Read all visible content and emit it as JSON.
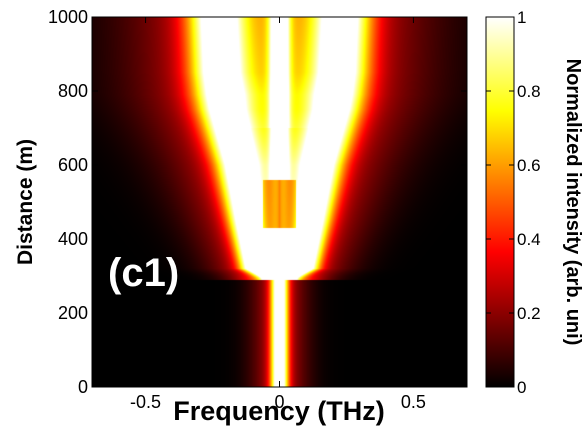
{
  "chart_data": {
    "type": "heatmap",
    "panel_label": "(c1)",
    "xlabel": "Frequency (THz)",
    "ylabel": "Distance (m)",
    "colorbar_label": "Normalized intensity (arb. uni)",
    "xlim": [
      -0.7,
      0.7
    ],
    "ylim": [
      0,
      1000
    ],
    "clim": [
      0,
      1
    ],
    "colormap": "hot",
    "x_ticks": [
      -0.5,
      0,
      0.5
    ],
    "x_tick_labels": [
      "-0.5",
      "0",
      "0.5"
    ],
    "y_ticks": [
      0,
      200,
      400,
      600,
      800,
      1000
    ],
    "y_tick_labels": [
      "0",
      "200",
      "400",
      "600",
      "800",
      "1000"
    ],
    "colorbar_ticks": [
      0,
      0.2,
      0.4,
      0.6,
      0.8,
      1
    ],
    "colorbar_tick_labels": [
      "0",
      "0.2",
      "0.4",
      "0.6",
      "0.8",
      "1"
    ],
    "ridges": [
      {
        "name": "central-line",
        "points": [
          [
            0,
            0
          ],
          [
            0,
            270
          ],
          [
            0,
            330
          ],
          [
            0,
            1000
          ]
        ],
        "peak": 1.0
      },
      {
        "name": "left-branch",
        "points": [
          [
            0,
            290
          ],
          [
            -0.09,
            320
          ],
          [
            -0.12,
            450
          ],
          [
            -0.15,
            600
          ],
          [
            -0.2,
            750
          ],
          [
            -0.22,
            850
          ],
          [
            -0.23,
            1000
          ]
        ],
        "peak": 1.0
      },
      {
        "name": "right-branch",
        "points": [
          [
            0,
            290
          ],
          [
            0.09,
            320
          ],
          [
            0.12,
            450
          ],
          [
            0.15,
            600
          ],
          [
            0.2,
            750
          ],
          [
            0.22,
            850
          ],
          [
            0.23,
            1000
          ]
        ],
        "peak": 1.0
      }
    ],
    "grid": false
  }
}
